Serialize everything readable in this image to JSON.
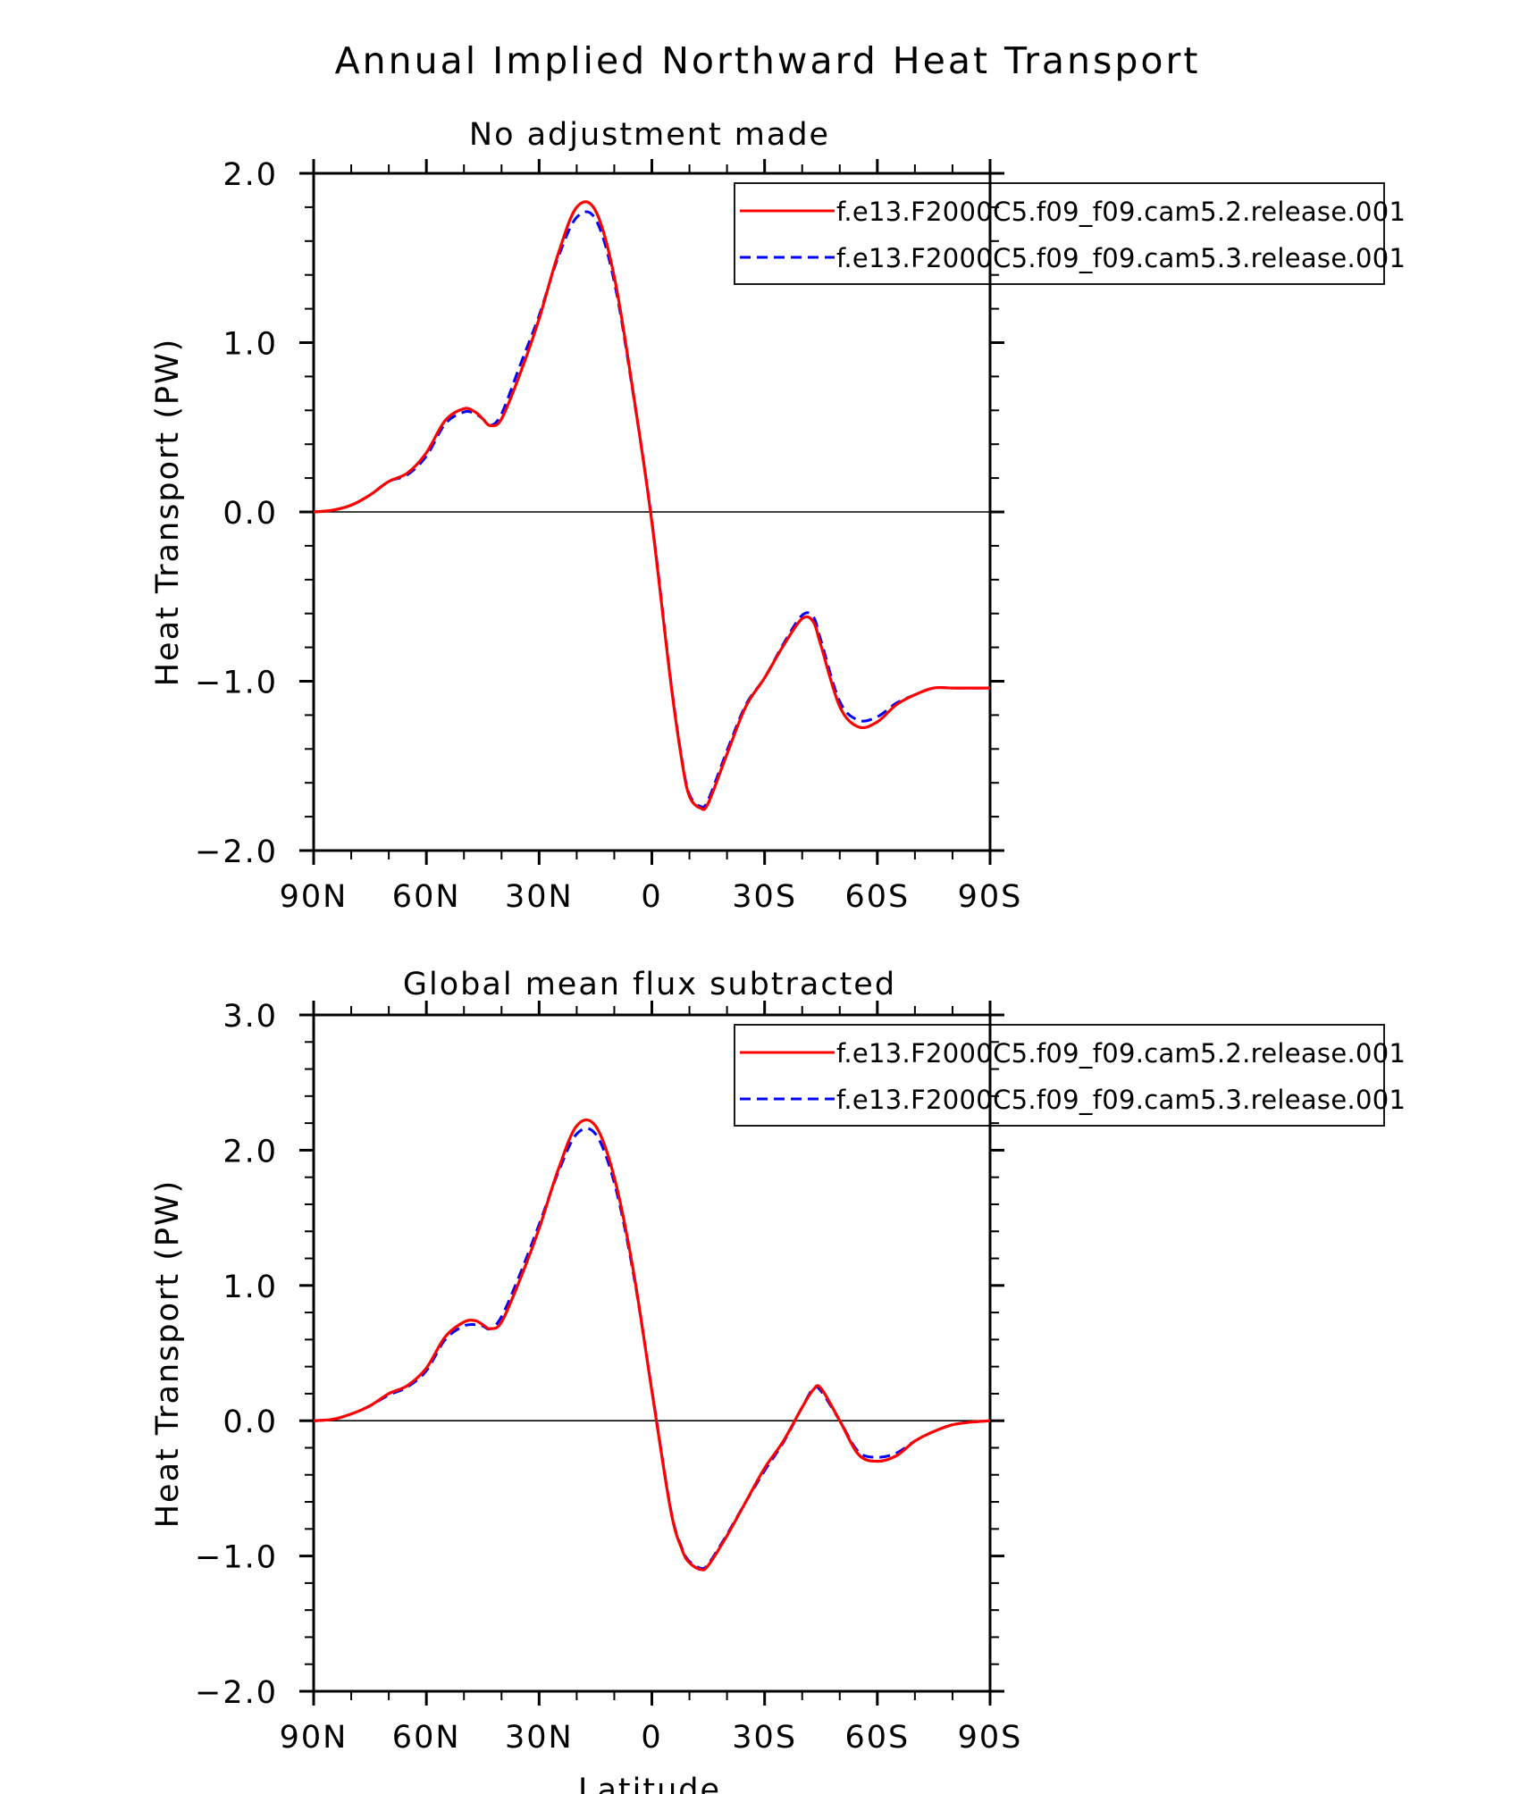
{
  "title": "Annual Implied Northward Heat Transport",
  "chart_data": [
    {
      "type": "line",
      "title": "No adjustment made",
      "xlabel": "",
      "ylabel": "Heat Transport (PW)",
      "xlim": [
        90,
        -90
      ],
      "ylim": [
        -2.0,
        2.0
      ],
      "yticks": [
        2.0,
        1.0,
        0.0,
        -1.0,
        -2.0
      ],
      "ytick_labels": [
        "2.0",
        "1.0",
        "0.0",
        "−1.0",
        "−2.0"
      ],
      "xticks": [
        90,
        60,
        30,
        0,
        -30,
        -60,
        -90
      ],
      "xtick_labels": [
        "90N",
        "60N",
        "30N",
        "0",
        "30S",
        "60S",
        "90S"
      ],
      "grid": false,
      "legend_position": "top-right",
      "series": [
        {
          "name": "f.e13.F2000C5.f09_f09.cam5.2.release.001",
          "color": "#ff0000",
          "dash": "solid",
          "x": [
            90,
            85,
            80,
            75,
            70,
            65,
            60,
            55,
            50,
            47,
            45,
            43,
            40,
            35,
            30,
            25,
            20,
            15,
            10,
            5,
            0,
            -5,
            -8,
            -10,
            -13,
            -15,
            -20,
            -25,
            -30,
            -35,
            -40,
            -43,
            -45,
            -50,
            -55,
            -60,
            -65,
            -70,
            -75,
            -80,
            -85,
            -90
          ],
          "y": [
            0.0,
            0.01,
            0.04,
            0.1,
            0.18,
            0.23,
            0.35,
            0.54,
            0.61,
            0.59,
            0.55,
            0.51,
            0.55,
            0.82,
            1.14,
            1.52,
            1.8,
            1.78,
            1.39,
            0.71,
            -0.06,
            -1.0,
            -1.47,
            -1.68,
            -1.75,
            -1.72,
            -1.43,
            -1.15,
            -0.98,
            -0.79,
            -0.63,
            -0.65,
            -0.79,
            -1.15,
            -1.27,
            -1.24,
            -1.14,
            -1.08,
            -1.04,
            -1.04,
            -1.04,
            -1.04
          ]
        },
        {
          "name": "f.e13.F2000C5.f09_f09.cam5.3.release.001",
          "color": "#0000ff",
          "dash": "dashed",
          "x": [
            90,
            85,
            80,
            75,
            70,
            65,
            60,
            55,
            50,
            47,
            45,
            43,
            40,
            35,
            30,
            25,
            20,
            15,
            10,
            5,
            0,
            -5,
            -8,
            -10,
            -13,
            -15,
            -20,
            -25,
            -30,
            -35,
            -40,
            -43,
            -45,
            -50,
            -55,
            -60,
            -65,
            -70,
            -75,
            -80,
            -85,
            -90
          ],
          "y": [
            0.0,
            0.01,
            0.04,
            0.1,
            0.18,
            0.22,
            0.33,
            0.52,
            0.59,
            0.58,
            0.55,
            0.51,
            0.58,
            0.87,
            1.16,
            1.5,
            1.74,
            1.73,
            1.36,
            0.7,
            -0.05,
            -0.99,
            -1.46,
            -1.67,
            -1.74,
            -1.7,
            -1.41,
            -1.14,
            -0.98,
            -0.78,
            -0.61,
            -0.62,
            -0.76,
            -1.12,
            -1.23,
            -1.21,
            -1.13,
            -1.08,
            -1.04,
            -1.04,
            -1.04,
            -1.04
          ]
        }
      ]
    },
    {
      "type": "line",
      "title": "Global mean flux subtracted",
      "xlabel": "Latitude",
      "ylabel": "Heat Transport (PW)",
      "xlim": [
        90,
        -90
      ],
      "ylim": [
        -2.0,
        3.0
      ],
      "yticks": [
        3.0,
        2.0,
        1.0,
        0.0,
        -1.0,
        -2.0
      ],
      "ytick_labels": [
        "3.0",
        "2.0",
        "1.0",
        "0.0",
        "−1.0",
        "−2.0"
      ],
      "xticks": [
        90,
        60,
        30,
        0,
        -30,
        -60,
        -90
      ],
      "xtick_labels": [
        "90N",
        "60N",
        "30N",
        "0",
        "30S",
        "60S",
        "90S"
      ],
      "grid": false,
      "legend_position": "top-right",
      "series": [
        {
          "name": "f.e13.F2000C5.f09_f09.cam5.2.release.001",
          "color": "#ff0000",
          "dash": "solid",
          "x": [
            90,
            85,
            80,
            75,
            70,
            65,
            60,
            55,
            50,
            47,
            45,
            43,
            40,
            35,
            30,
            25,
            20,
            15,
            10,
            5,
            0,
            -5,
            -8,
            -10,
            -13,
            -15,
            -20,
            -25,
            -30,
            -35,
            -40,
            -43,
            -45,
            -50,
            -55,
            -60,
            -65,
            -70,
            -75,
            -80,
            -85,
            -90
          ],
          "y": [
            0.0,
            0.01,
            0.05,
            0.11,
            0.2,
            0.26,
            0.39,
            0.62,
            0.73,
            0.74,
            0.71,
            0.68,
            0.73,
            1.05,
            1.42,
            1.85,
            2.18,
            2.18,
            1.8,
            1.12,
            0.22,
            -0.66,
            -0.95,
            -1.05,
            -1.1,
            -1.07,
            -0.85,
            -0.6,
            -0.35,
            -0.15,
            0.1,
            0.23,
            0.24,
            0.0,
            -0.25,
            -0.3,
            -0.26,
            -0.15,
            -0.08,
            -0.03,
            -0.01,
            0.0
          ]
        },
        {
          "name": "f.e13.F2000C5.f09_f09.cam5.3.release.001",
          "color": "#0000ff",
          "dash": "dashed",
          "x": [
            90,
            85,
            80,
            75,
            70,
            65,
            60,
            55,
            50,
            47,
            45,
            43,
            40,
            35,
            30,
            25,
            20,
            15,
            10,
            5,
            0,
            -5,
            -8,
            -10,
            -13,
            -15,
            -20,
            -25,
            -30,
            -35,
            -40,
            -43,
            -45,
            -50,
            -55,
            -60,
            -65,
            -70,
            -75,
            -80,
            -85,
            -90
          ],
          "y": [
            0.0,
            0.01,
            0.05,
            0.11,
            0.19,
            0.25,
            0.37,
            0.6,
            0.7,
            0.71,
            0.7,
            0.68,
            0.77,
            1.09,
            1.45,
            1.83,
            2.12,
            2.12,
            1.76,
            1.1,
            0.23,
            -0.65,
            -0.94,
            -1.04,
            -1.09,
            -1.06,
            -0.84,
            -0.6,
            -0.37,
            -0.16,
            0.1,
            0.24,
            0.22,
            0.0,
            -0.23,
            -0.27,
            -0.24,
            -0.15,
            -0.08,
            -0.03,
            -0.01,
            0.0
          ]
        }
      ]
    }
  ]
}
